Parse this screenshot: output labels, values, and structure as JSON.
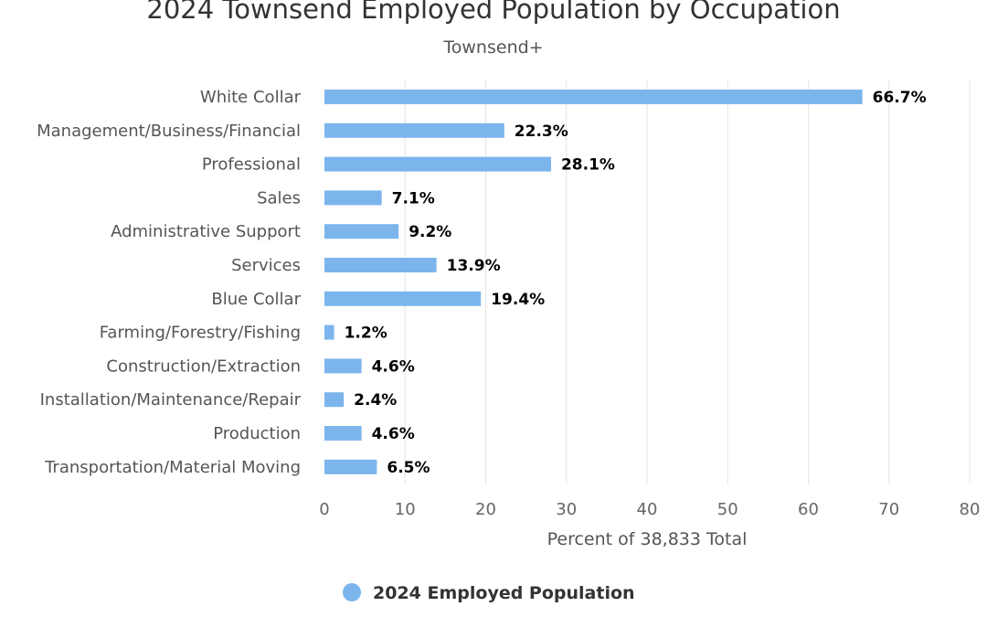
{
  "chart_data": {
    "type": "bar",
    "orientation": "horizontal",
    "title": "2024 Townsend Employed Population by Occupation",
    "subtitle": "Townsend+",
    "xlabel": "Percent of 38,833 Total",
    "ylabel": "",
    "categories": [
      "White Collar",
      "Management/Business/Financial",
      "Professional",
      "Sales",
      "Administrative Support",
      "Services",
      "Blue Collar",
      "Farming/Forestry/Fishing",
      "Construction/Extraction",
      "Installation/Maintenance/Repair",
      "Production",
      "Transportation/Material Moving"
    ],
    "series": [
      {
        "name": "2024 Employed Population",
        "values": [
          66.7,
          22.3,
          28.1,
          7.1,
          9.2,
          13.9,
          19.4,
          1.2,
          4.6,
          2.4,
          4.6,
          6.5
        ],
        "labels": [
          "66.7%",
          "22.3%",
          "28.1%",
          "7.1%",
          "9.2%",
          "13.9%",
          "19.4%",
          "1.2%",
          "4.6%",
          "2.4%",
          "4.6%",
          "6.5%"
        ],
        "color": "#7cb5ec"
      }
    ],
    "xlim": [
      0,
      80
    ],
    "xticks": [
      "0",
      "10",
      "20",
      "30",
      "40",
      "50",
      "60",
      "70",
      "80"
    ],
    "grid": true,
    "legend_position": "bottom-center"
  }
}
